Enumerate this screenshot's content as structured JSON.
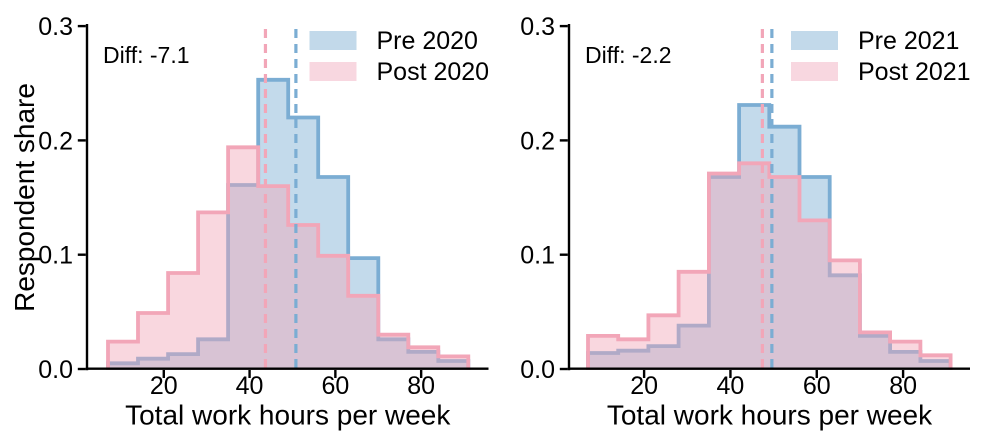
{
  "figure": {
    "background": "#ffffff",
    "text_color": "#000000",
    "axis_color": "#000000"
  },
  "chart_data": [
    {
      "type": "step-histogram",
      "panel": "2020",
      "title": "",
      "xlabel": "Total work hours per week",
      "ylabel": "Respondent share",
      "annotation": "Diff: -7.1",
      "legend_position": "upper right",
      "grid": false,
      "xlim": [
        2.1,
        95.7
      ],
      "ylim": [
        0.0,
        0.3
      ],
      "xticks": [
        20,
        40,
        60,
        80
      ],
      "xtick_labels": [
        "20",
        "40",
        "60",
        "80"
      ],
      "yticks": [
        0.0,
        0.1,
        0.2,
        0.3
      ],
      "ytick_labels": [
        "0.0",
        "0.1",
        "0.2",
        "0.3"
      ],
      "bin_edges": [
        7,
        14,
        21,
        28,
        35,
        42,
        49,
        56,
        63,
        70,
        77,
        84,
        91
      ],
      "series": [
        {
          "name": "Pre 2020",
          "line_color": "#7badd3",
          "fill_rgba": "rgba(123,173,211,0.45)",
          "legend_fill": "#c2d9ea",
          "mean_line_x": 50.8,
          "values": [
            0.005,
            0.009,
            0.013,
            0.026,
            0.161,
            0.253,
            0.22,
            0.168,
            0.097,
            0.026,
            0.015,
            0.007
          ]
        },
        {
          "name": "Post 2020",
          "line_color": "#f2a6b8",
          "fill_rgba": "rgba(242,166,184,0.45)",
          "legend_fill": "#f8d7e0",
          "mean_line_x": 43.7,
          "values": [
            0.024,
            0.049,
            0.084,
            0.137,
            0.194,
            0.16,
            0.126,
            0.099,
            0.064,
            0.03,
            0.019,
            0.011
          ]
        }
      ]
    },
    {
      "type": "step-histogram",
      "panel": "2021",
      "title": "",
      "xlabel": "Total work hours per week",
      "ylabel": "",
      "annotation": "Diff: -2.2",
      "legend_position": "upper right",
      "grid": false,
      "xlim": [
        2.6,
        95.5
      ],
      "ylim": [
        0.0,
        0.3
      ],
      "xticks": [
        20,
        40,
        60,
        80
      ],
      "xtick_labels": [
        "20",
        "40",
        "60",
        "80"
      ],
      "yticks": [
        0.0,
        0.1,
        0.2,
        0.3
      ],
      "ytick_labels": [
        "0.0",
        "0.1",
        "0.2",
        "0.3"
      ],
      "bin_edges": [
        7,
        14,
        21,
        28,
        35,
        42,
        49,
        56,
        63,
        70,
        77,
        84,
        91
      ],
      "series": [
        {
          "name": "Pre 2021",
          "line_color": "#7badd3",
          "fill_rgba": "rgba(123,173,211,0.45)",
          "legend_fill": "#c2d9ea",
          "mean_line_x": 49.6,
          "values": [
            0.014,
            0.016,
            0.02,
            0.038,
            0.168,
            0.231,
            0.212,
            0.168,
            0.082,
            0.029,
            0.015,
            0.007
          ]
        },
        {
          "name": "Post 2021",
          "line_color": "#f2a6b8",
          "fill_rgba": "rgba(242,166,184,0.45)",
          "legend_fill": "#f8d7e0",
          "mean_line_x": 47.4,
          "values": [
            0.029,
            0.026,
            0.047,
            0.085,
            0.171,
            0.18,
            0.168,
            0.13,
            0.095,
            0.032,
            0.024,
            0.012
          ]
        }
      ]
    }
  ]
}
